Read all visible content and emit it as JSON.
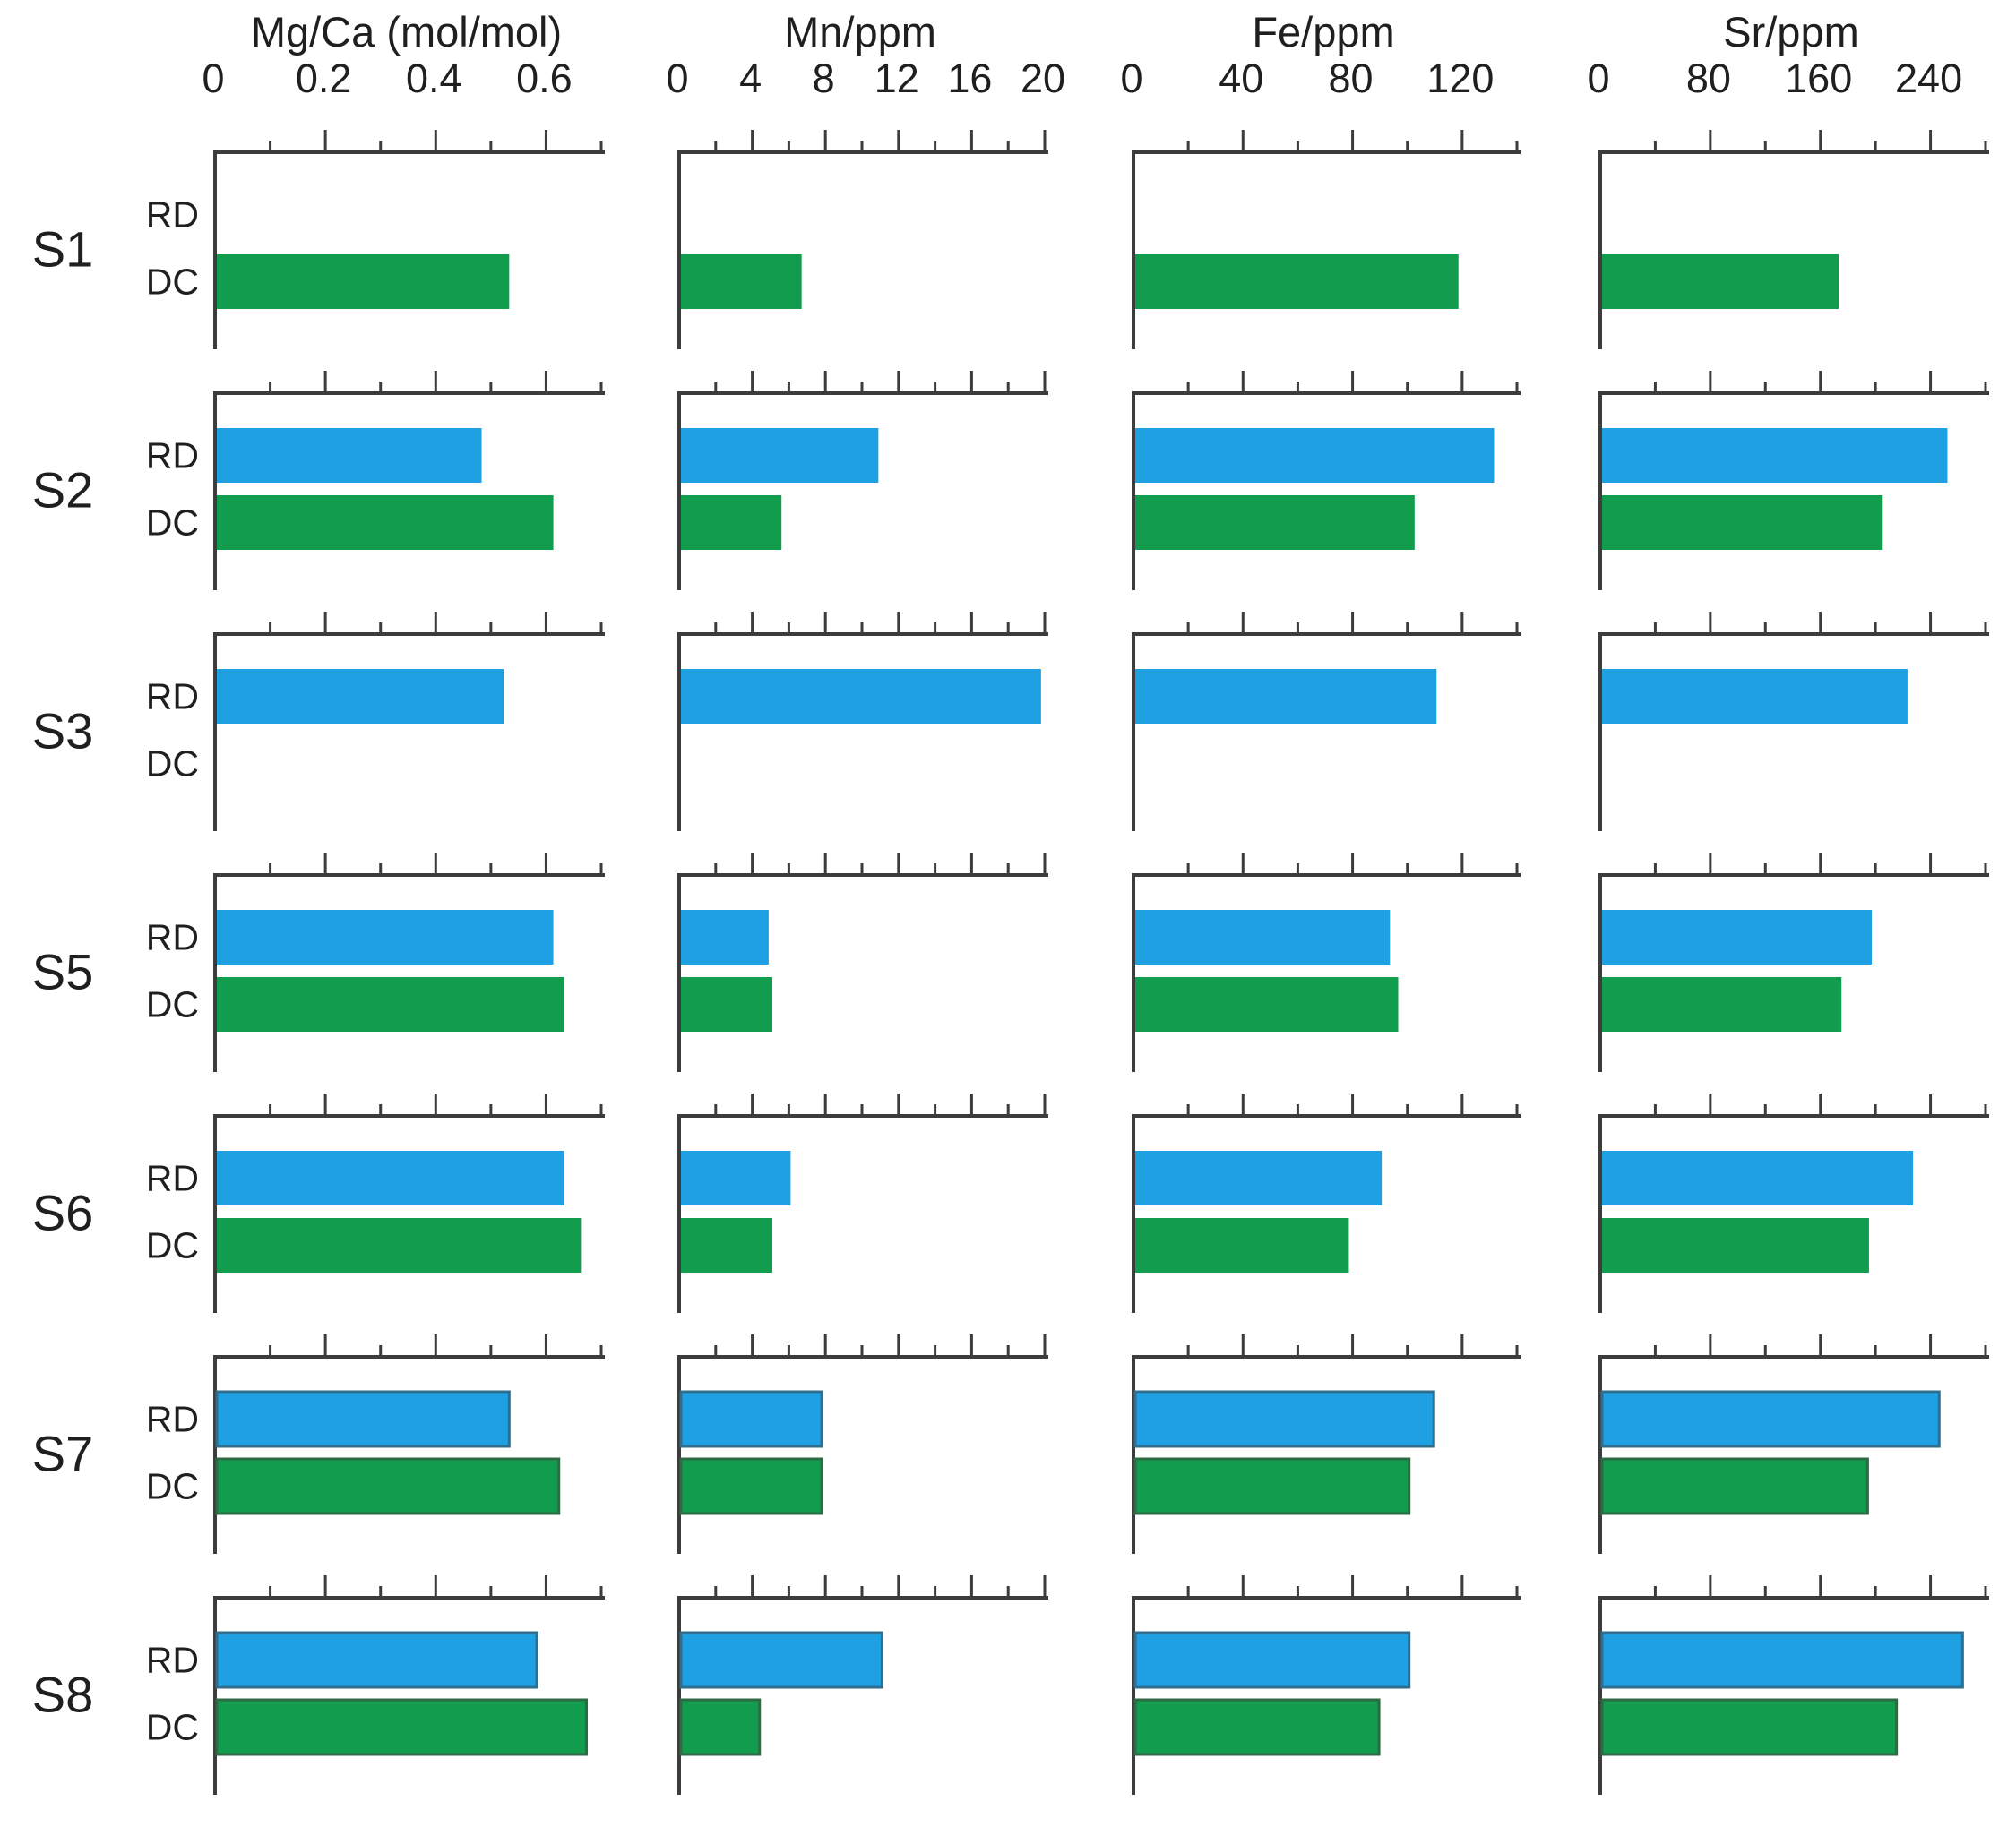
{
  "figure": {
    "description": "Seven-sample multi-panel horizontal bar chart comparing RD and DC measurements across four geochemical variables"
  },
  "chart_data": {
    "type": "bar",
    "orientation": "horizontal",
    "legend_position": "none",
    "grid": false,
    "series_labels": [
      "RD",
      "DC"
    ],
    "colors": {
      "rd_fill": "#1FA0E2",
      "dc_fill": "#119C4E",
      "rd_outline": "#2f6e8e",
      "dc_outline": "#2e6b45",
      "axis": "#3c3c3c",
      "text": "#1f1f1f"
    },
    "columns": [
      {
        "title": "Mg/Ca (mol/mol)",
        "xlim": [
          0,
          0.7
        ],
        "minor_step": 0.1,
        "major_step": 0.2,
        "tick_labels": [
          "0",
          "0.2",
          "0.4",
          "0.6"
        ],
        "label_values": [
          0,
          0.2,
          0.4,
          0.6
        ]
      },
      {
        "title": "Mn/ppm",
        "xlim": [
          0,
          20
        ],
        "minor_step": 2,
        "major_step": 4,
        "tick_labels": [
          "0",
          "4",
          "8",
          "12",
          "16",
          "20"
        ],
        "label_values": [
          0,
          4,
          8,
          12,
          16,
          20
        ]
      },
      {
        "title": "Fe/ppm",
        "xlim": [
          0,
          140
        ],
        "minor_step": 20,
        "major_step": 40,
        "tick_labels": [
          "0",
          "40",
          "80",
          "120"
        ],
        "label_values": [
          0,
          40,
          80,
          120
        ]
      },
      {
        "title": "Sr/ppm",
        "xlim": [
          0,
          280
        ],
        "minor_step": 40,
        "major_step": 80,
        "tick_labels": [
          "0",
          "80",
          "160",
          "240"
        ],
        "label_values": [
          0,
          80,
          160,
          240
        ]
      }
    ],
    "rows": [
      {
        "label": "S1",
        "outlined": false,
        "values": {
          "RD": [
            null,
            null,
            null,
            null
          ],
          "DC": [
            0.53,
            6.6,
            118,
            172
          ]
        }
      },
      {
        "label": "S2",
        "outlined": false,
        "values": {
          "RD": [
            0.48,
            10.8,
            131,
            251
          ],
          "DC": [
            0.61,
            5.5,
            102,
            204
          ]
        }
      },
      {
        "label": "S3",
        "outlined": false,
        "values": {
          "RD": [
            0.52,
            19.7,
            110,
            222
          ],
          "DC": [
            null,
            null,
            null,
            null
          ]
        }
      },
      {
        "label": "S5",
        "outlined": false,
        "values": {
          "RD": [
            0.61,
            4.8,
            93,
            196
          ],
          "DC": [
            0.63,
            5.0,
            96,
            174
          ]
        }
      },
      {
        "label": "S6",
        "outlined": false,
        "values": {
          "RD": [
            0.63,
            6.0,
            90,
            226
          ],
          "DC": [
            0.66,
            5.0,
            78,
            194
          ]
        }
      },
      {
        "label": "S7",
        "outlined": true,
        "values": {
          "RD": [
            0.53,
            7.7,
            109,
            245
          ],
          "DC": [
            0.62,
            7.7,
            100,
            193
          ]
        }
      },
      {
        "label": "S8",
        "outlined": true,
        "values": {
          "RD": [
            0.58,
            11.0,
            100,
            262
          ],
          "DC": [
            0.67,
            4.3,
            89,
            214
          ]
        }
      }
    ]
  }
}
